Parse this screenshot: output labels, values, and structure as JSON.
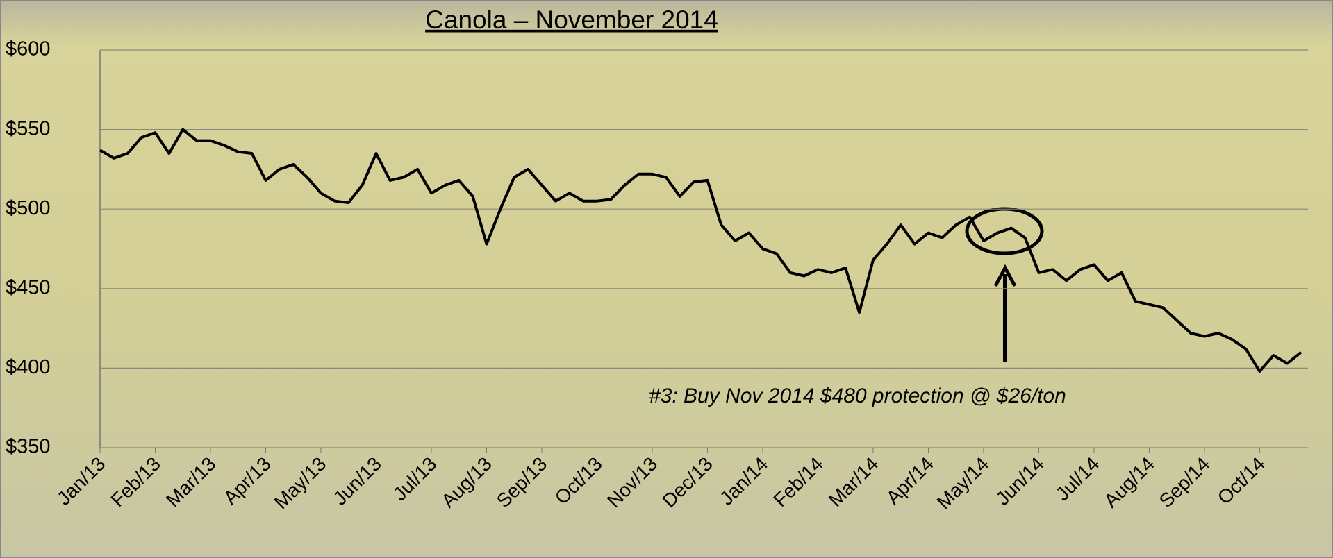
{
  "chart_data": {
    "type": "line",
    "title": "Canola – November 2014",
    "annotation": "#3: Buy Nov 2014 $480 protection @ $26/ton",
    "categories": [
      "Jan/13",
      null,
      null,
      null,
      "Feb/13",
      null,
      null,
      null,
      "Mar/13",
      null,
      null,
      null,
      "Apr/13",
      null,
      null,
      null,
      "May/13",
      null,
      null,
      null,
      "Jun/13",
      null,
      null,
      null,
      "Jul/13",
      null,
      null,
      null,
      "Aug/13",
      null,
      null,
      null,
      "Sep/13",
      null,
      null,
      null,
      "Oct/13",
      null,
      null,
      null,
      "Nov/13",
      null,
      null,
      null,
      "Dec/13",
      null,
      null,
      null,
      "Jan/14",
      null,
      null,
      null,
      "Feb/14",
      null,
      null,
      null,
      "Mar/14",
      null,
      null,
      null,
      "Apr/14",
      null,
      null,
      null,
      "May/14",
      null,
      null,
      null,
      "Jun/14",
      null,
      null,
      null,
      "Jul/14",
      null,
      null,
      null,
      "Aug/14",
      null,
      null,
      null,
      "Sep/14",
      null,
      null,
      null,
      "Oct/14",
      null,
      null,
      null
    ],
    "values": [
      537,
      532,
      535,
      545,
      548,
      535,
      550,
      543,
      543,
      540,
      536,
      535,
      518,
      525,
      528,
      520,
      510,
      505,
      504,
      515,
      535,
      518,
      520,
      525,
      510,
      515,
      518,
      508,
      478,
      500,
      520,
      525,
      515,
      505,
      510,
      505,
      505,
      506,
      515,
      522,
      522,
      520,
      508,
      517,
      518,
      490,
      480,
      485,
      475,
      472,
      460,
      458,
      462,
      460,
      463,
      435,
      468,
      478,
      490,
      478,
      485,
      482,
      490,
      495,
      480,
      485,
      488,
      482,
      460,
      462,
      455,
      462,
      465,
      455,
      460,
      442,
      440,
      438,
      430,
      422,
      420,
      422,
      418,
      412,
      398,
      408,
      403,
      410
    ],
    "color": "#000000",
    "ylim": [
      350,
      600
    ],
    "yticks": [
      {
        "value": 350,
        "label": "$350"
      },
      {
        "value": 400,
        "label": "$400"
      },
      {
        "value": 450,
        "label": "$450"
      },
      {
        "value": 500,
        "label": "$500"
      },
      {
        "value": 550,
        "label": "$550"
      },
      {
        "value": 600,
        "label": "$600"
      }
    ],
    "grid": true
  }
}
